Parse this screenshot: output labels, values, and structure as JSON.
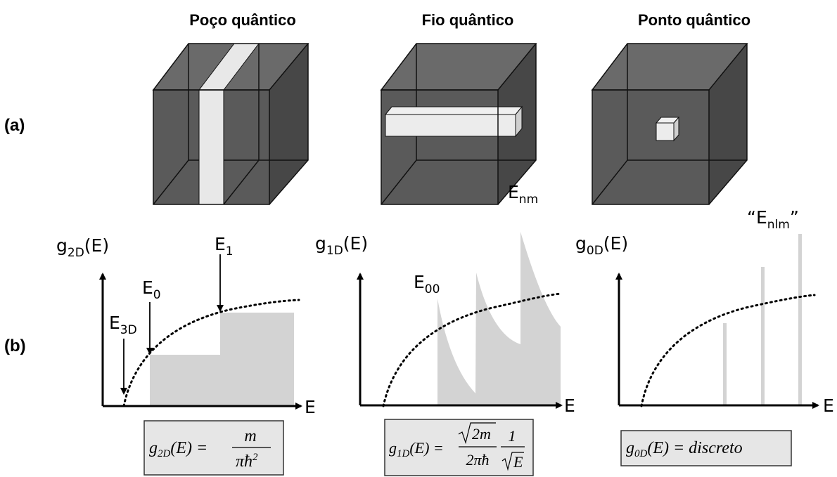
{
  "titles": [
    "Poço quântico",
    "Fio quântico",
    "Ponto quântico"
  ],
  "row_labels": [
    "(a)",
    "(b)"
  ],
  "cube_label": {
    "base": "E",
    "sub": "nm"
  },
  "dot_label": {
    "open": "“",
    "base": "E",
    "sub": "nlm",
    "close": "”"
  },
  "panels": [
    {
      "y_label": {
        "base": "g",
        "sub": "2D",
        "tail": "(E)"
      },
      "x_label": "E",
      "annotations": [
        {
          "base": "E",
          "sub": "1"
        },
        {
          "base": "E",
          "sub": "0"
        },
        {
          "base": "E",
          "sub": "3D"
        }
      ],
      "formula": {
        "lhs": "g",
        "lhs_sub": "2D",
        "lhs_tail": "(E) =",
        "num": "m",
        "den": "πħ",
        "den_sup": "2"
      }
    },
    {
      "y_label": {
        "base": "g",
        "sub": "1D",
        "tail": "(E)"
      },
      "x_label": "E",
      "annotations": [
        {
          "base": "E",
          "sub": "00"
        }
      ],
      "formula": {
        "lhs": "g",
        "lhs_sub": "1D",
        "lhs_tail": "(E) =",
        "num": "2m",
        "den": "2πħ",
        "num2": "1",
        "den2": "E"
      }
    },
    {
      "y_label": {
        "base": "g",
        "sub": "0D",
        "tail": "(E)"
      },
      "x_label": "E",
      "formula": {
        "lhs": "g",
        "lhs_sub": "0D",
        "lhs_tail": "(E) = discreto"
      }
    }
  ]
}
